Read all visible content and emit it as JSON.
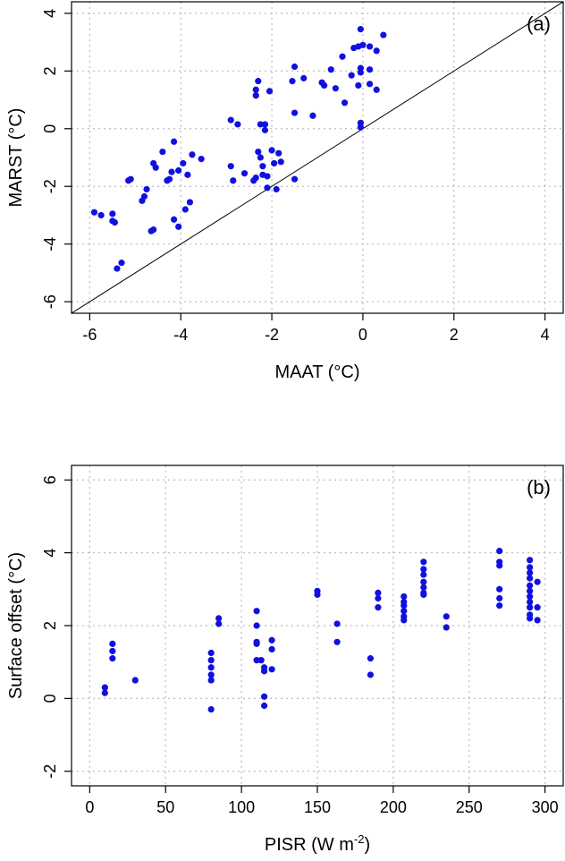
{
  "chart_data": [
    {
      "type": "scatter",
      "panel_label": "(a)",
      "xlabel": "MAAT (°C)",
      "ylabel": "MARST (°C)",
      "xlim": [
        -6.4,
        4.4
      ],
      "ylim": [
        -6.4,
        4.4
      ],
      "xticks": [
        -6,
        -4,
        -2,
        0,
        2,
        4
      ],
      "yticks": [
        -6,
        -4,
        -2,
        0,
        2,
        4
      ],
      "grid": true,
      "reference_line": "1:1",
      "point_color": "#1010e0",
      "points": [
        [
          -5.9,
          -2.9
        ],
        [
          -5.75,
          -3.0
        ],
        [
          -5.5,
          -2.95
        ],
        [
          -5.5,
          -3.2
        ],
        [
          -5.45,
          -3.25
        ],
        [
          -5.4,
          -4.85
        ],
        [
          -5.3,
          -4.65
        ],
        [
          -5.15,
          -1.8
        ],
        [
          -5.1,
          -1.75
        ],
        [
          -4.85,
          -2.5
        ],
        [
          -4.8,
          -2.35
        ],
        [
          -4.75,
          -2.1
        ],
        [
          -4.65,
          -3.55
        ],
        [
          -4.6,
          -3.5
        ],
        [
          -4.6,
          -1.2
        ],
        [
          -4.55,
          -1.35
        ],
        [
          -4.4,
          -0.8
        ],
        [
          -4.3,
          -1.8
        ],
        [
          -4.25,
          -1.75
        ],
        [
          -4.2,
          -1.5
        ],
        [
          -4.15,
          -0.45
        ],
        [
          -4.15,
          -3.15
        ],
        [
          -4.05,
          -3.4
        ],
        [
          -4.05,
          -1.45
        ],
        [
          -3.95,
          -1.2
        ],
        [
          -3.9,
          -2.8
        ],
        [
          -3.85,
          -1.6
        ],
        [
          -3.8,
          -2.55
        ],
        [
          -3.75,
          -0.9
        ],
        [
          -3.55,
          -1.05
        ],
        [
          -2.9,
          0.3
        ],
        [
          -2.9,
          -1.3
        ],
        [
          -2.85,
          -1.8
        ],
        [
          -2.75,
          0.15
        ],
        [
          -2.6,
          -1.55
        ],
        [
          -2.4,
          -1.8
        ],
        [
          -2.35,
          -1.7
        ],
        [
          -2.35,
          1.15
        ],
        [
          -2.35,
          1.35
        ],
        [
          -2.3,
          1.65
        ],
        [
          -2.3,
          -0.8
        ],
        [
          -2.25,
          0.15
        ],
        [
          -2.25,
          -1.0
        ],
        [
          -2.2,
          -1.3
        ],
        [
          -2.2,
          -1.6
        ],
        [
          -2.15,
          -0.05
        ],
        [
          -2.15,
          0.15
        ],
        [
          -2.1,
          -1.65
        ],
        [
          -2.1,
          -2.05
        ],
        [
          -2.05,
          1.3
        ],
        [
          -2.0,
          -0.75
        ],
        [
          -1.95,
          -1.2
        ],
        [
          -1.9,
          -2.1
        ],
        [
          -1.85,
          -0.85
        ],
        [
          -1.8,
          -1.15
        ],
        [
          -1.55,
          1.65
        ],
        [
          -1.5,
          2.15
        ],
        [
          -1.5,
          0.55
        ],
        [
          -1.5,
          -1.75
        ],
        [
          -1.3,
          1.75
        ],
        [
          -1.1,
          0.45
        ],
        [
          -0.9,
          1.6
        ],
        [
          -0.85,
          1.5
        ],
        [
          -0.7,
          2.05
        ],
        [
          -0.6,
          1.4
        ],
        [
          -0.45,
          2.5
        ],
        [
          -0.4,
          0.9
        ],
        [
          -0.25,
          1.85
        ],
        [
          -0.2,
          2.8
        ],
        [
          -0.1,
          2.85
        ],
        [
          -0.1,
          1.5
        ],
        [
          -0.05,
          1.95
        ],
        [
          -0.05,
          2.1
        ],
        [
          -0.05,
          3.45
        ],
        [
          -0.05,
          0.2
        ],
        [
          -0.05,
          0.05
        ],
        [
          0.0,
          2.9
        ],
        [
          0.15,
          2.85
        ],
        [
          0.15,
          2.05
        ],
        [
          0.15,
          1.55
        ],
        [
          0.3,
          2.7
        ],
        [
          0.3,
          1.35
        ],
        [
          0.45,
          3.25
        ]
      ]
    },
    {
      "type": "scatter",
      "panel_label": "(b)",
      "xlabel": "PISR (W m",
      "xlabel_superscript": "-2",
      "xlabel_suffix": ")",
      "ylabel": "Surface offset (°C)",
      "xlim": [
        -12,
        312
      ],
      "ylim": [
        -2.4,
        6.4
      ],
      "xticks": [
        0,
        50,
        100,
        150,
        200,
        250,
        300
      ],
      "yticks": [
        -2,
        0,
        2,
        4,
        6
      ],
      "grid": true,
      "point_color": "#1010e0",
      "points": [
        [
          10,
          0.3
        ],
        [
          10,
          0.15
        ],
        [
          15,
          1.5
        ],
        [
          15,
          1.3
        ],
        [
          15,
          1.1
        ],
        [
          30,
          0.5
        ],
        [
          80,
          1.25
        ],
        [
          80,
          1.05
        ],
        [
          80,
          0.85
        ],
        [
          80,
          0.65
        ],
        [
          80,
          0.5
        ],
        [
          80,
          -0.3
        ],
        [
          85,
          2.2
        ],
        [
          85,
          2.05
        ],
        [
          110,
          2.4
        ],
        [
          110,
          2.0
        ],
        [
          110,
          1.55
        ],
        [
          110,
          1.5
        ],
        [
          110,
          1.05
        ],
        [
          113,
          1.05
        ],
        [
          115,
          0.85
        ],
        [
          115,
          0.75
        ],
        [
          115,
          0.05
        ],
        [
          115,
          -0.2
        ],
        [
          120,
          1.6
        ],
        [
          120,
          1.35
        ],
        [
          120,
          0.8
        ],
        [
          150,
          2.95
        ],
        [
          150,
          2.85
        ],
        [
          163,
          2.05
        ],
        [
          163,
          1.55
        ],
        [
          185,
          1.1
        ],
        [
          185,
          0.65
        ],
        [
          190,
          2.9
        ],
        [
          190,
          2.75
        ],
        [
          190,
          2.5
        ],
        [
          207,
          2.8
        ],
        [
          207,
          2.65
        ],
        [
          207,
          2.55
        ],
        [
          207,
          2.4
        ],
        [
          207,
          2.25
        ],
        [
          207,
          2.15
        ],
        [
          220,
          3.75
        ],
        [
          220,
          3.55
        ],
        [
          220,
          3.4
        ],
        [
          220,
          3.2
        ],
        [
          220,
          3.05
        ],
        [
          220,
          2.9
        ],
        [
          220,
          2.85
        ],
        [
          235,
          2.25
        ],
        [
          235,
          1.95
        ],
        [
          270,
          4.05
        ],
        [
          270,
          3.75
        ],
        [
          270,
          3.65
        ],
        [
          270,
          3.0
        ],
        [
          270,
          2.75
        ],
        [
          270,
          2.55
        ],
        [
          290,
          3.8
        ],
        [
          290,
          3.6
        ],
        [
          290,
          3.45
        ],
        [
          290,
          3.3
        ],
        [
          290,
          3.1
        ],
        [
          290,
          2.95
        ],
        [
          290,
          2.8
        ],
        [
          290,
          2.65
        ],
        [
          290,
          2.5
        ],
        [
          290,
          2.3
        ],
        [
          290,
          2.2
        ],
        [
          295,
          3.2
        ],
        [
          295,
          2.5
        ],
        [
          295,
          2.15
        ]
      ]
    }
  ]
}
